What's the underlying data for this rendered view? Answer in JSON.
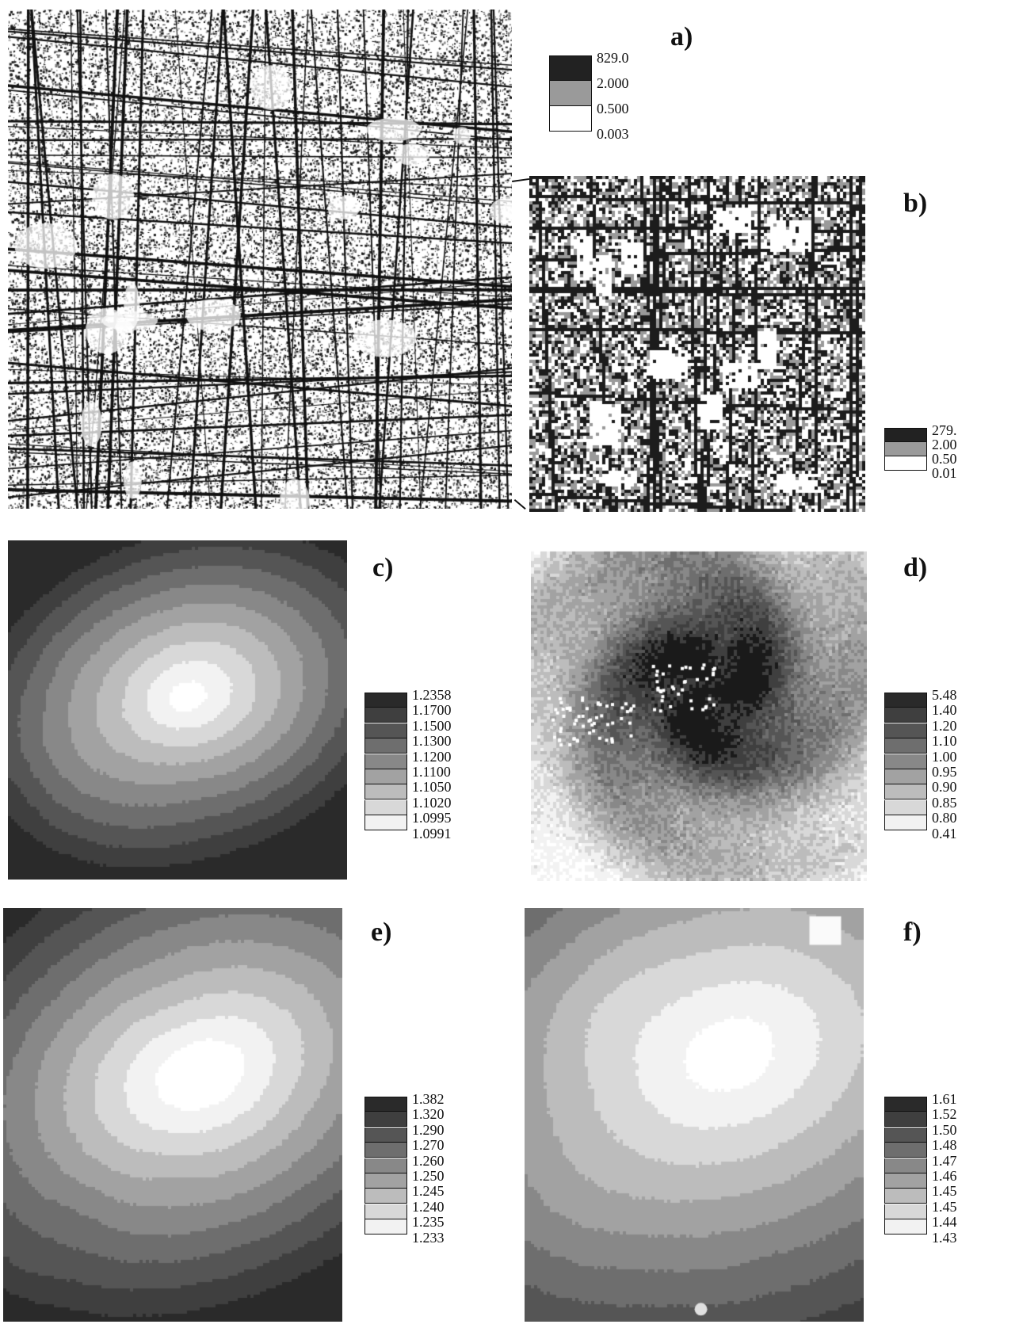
{
  "panels": [
    {
      "id": "a",
      "label": "a)"
    },
    {
      "id": "b",
      "label": "b)"
    },
    {
      "id": "c",
      "label": "c)"
    },
    {
      "id": "d",
      "label": "d)"
    },
    {
      "id": "e",
      "label": "e)"
    },
    {
      "id": "f",
      "label": "f)"
    }
  ],
  "legends": {
    "a": [
      "829.0",
      "2.000",
      "0.500",
      "0.003"
    ],
    "b": [
      "279.",
      "2.00",
      "0.50",
      "0.01"
    ],
    "c": [
      "1.2358",
      "1.1700",
      "1.1500",
      "1.1300",
      "1.1200",
      "1.1100",
      "1.1050",
      "1.1020",
      "1.0995",
      "1.0991"
    ],
    "d": [
      "5.48",
      "1.40",
      "1.20",
      "1.10",
      "1.00",
      "0.95",
      "0.90",
      "0.85",
      "0.80",
      "0.41"
    ],
    "e": [
      "1.382",
      "1.320",
      "1.290",
      "1.270",
      "1.260",
      "1.250",
      "1.245",
      "1.240",
      "1.235",
      "1.233"
    ],
    "f": [
      "1.61",
      "1.52",
      "1.50",
      "1.48",
      "1.47",
      "1.46",
      "1.45",
      "1.45",
      "1.44",
      "1.43"
    ]
  },
  "colors": {
    "dark": "#1a1a1a",
    "light": "#ffffff",
    "a_swatches": [
      "#222222",
      "#9a9a9a",
      "#ffffff"
    ],
    "gray10": [
      "#2a2a2a",
      "#3f3f3f",
      "#555555",
      "#6e6e6e",
      "#888888",
      "#a2a2a2",
      "#bcbcbc",
      "#d8d8d8",
      "#f2f2f2"
    ]
  }
}
